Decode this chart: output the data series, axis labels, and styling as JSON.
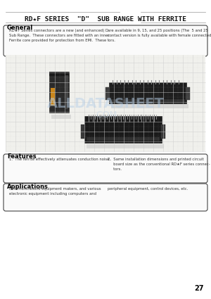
{
  "title": "RD★F SERIES  \"D\"  SUB RANGE WITH FERRITE",
  "page_number": "27",
  "general_heading": "General",
  "general_text_left": "RD★F Series connectors are a new (and enhanced) D\nSub Range.  These connectors are fitted with an inner\nFerrite core provided for protection from EMI.  These",
  "general_text_right": "are available in 9, 15, and 25 positions (The  5 and 25\ncontact version is fully available with female connected\ntors.",
  "features_heading": "Features",
  "features_text_left": "1.  The ferrite effectively attenuates conduction noise.",
  "features_text_right": "2.  Same installation dimensions and printed circuit\n     board size as the conventional RD★F series connec-\n     tors.",
  "applications_heading": "Applications",
  "applications_text_left": "Communications equipment makers, and various\nelectronic equipment including computers and",
  "applications_text_right": "peripheral equipment, control devices, etc.",
  "bg_color": "#ffffff",
  "grid_color": "#cccccc",
  "grid_bg": "#f0f0ec",
  "text_color": "#222222",
  "box_edge_color": "#444444",
  "title_color": "#111111",
  "heading_color": "#000000"
}
